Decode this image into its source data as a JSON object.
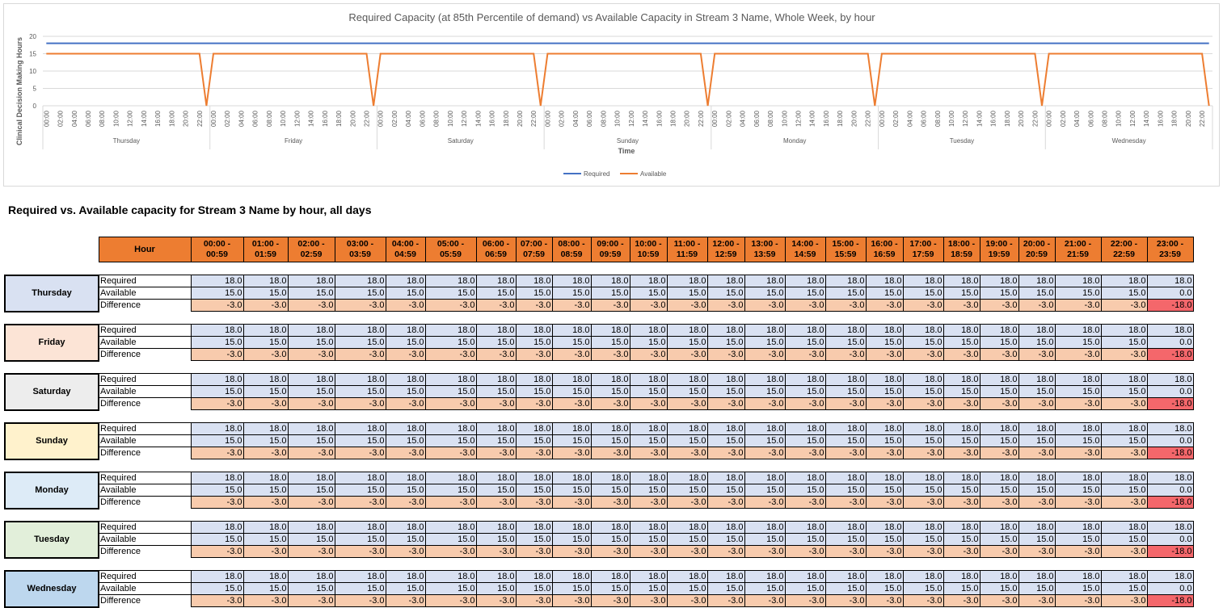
{
  "chart_data": {
    "type": "line",
    "title": "Required Capacity (at 85th Percentile of demand) vs Available Capacity in Stream 3 Name, Whole Week, by hour",
    "xlabel": "Time",
    "ylabel": "Clinical Decision Making Hours",
    "ylim": [
      0,
      20
    ],
    "yticks": [
      0,
      5,
      10,
      15,
      20
    ],
    "days": [
      "Thursday",
      "Friday",
      "Saturday",
      "Sunday",
      "Monday",
      "Tuesday",
      "Wednesday"
    ],
    "hour_ticks": [
      "00:00",
      "02:00",
      "04:00",
      "06:00",
      "08:00",
      "10:00",
      "12:00",
      "14:00",
      "16:00",
      "18:00",
      "20:00",
      "22:00"
    ],
    "legend_position": "bottom",
    "series": [
      {
        "name": "Required",
        "color": "#4472c4",
        "daily_pattern": [
          18,
          18,
          18,
          18,
          18,
          18,
          18,
          18,
          18,
          18,
          18,
          18,
          18,
          18,
          18,
          18,
          18,
          18,
          18,
          18,
          18,
          18,
          18,
          18
        ]
      },
      {
        "name": "Available",
        "color": "#ed7d31",
        "daily_pattern": [
          15,
          15,
          15,
          15,
          15,
          15,
          15,
          15,
          15,
          15,
          15,
          15,
          15,
          15,
          15,
          15,
          15,
          15,
          15,
          15,
          15,
          15,
          15,
          0
        ]
      }
    ]
  },
  "table": {
    "title": "Required vs. Available capacity for Stream 3 Name by hour, all days",
    "hour_header": "Hour",
    "hours": [
      "00:00 - 00:59",
      "01:00 - 01:59",
      "02:00 - 02:59",
      "03:00 - 03:59",
      "04:00 - 04:59",
      "05:00 - 05:59",
      "06:00 - 06:59",
      "07:00 - 07:59",
      "08:00 - 08:59",
      "09:00 - 09:59",
      "10:00 - 10:59",
      "11:00 - 11:59",
      "12:00 - 12:59",
      "13:00 - 13:59",
      "14:00 - 14:59",
      "15:00 - 15:59",
      "16:00 - 16:59",
      "17:00 - 17:59",
      "18:00 - 18:59",
      "19:00 - 19:59",
      "20:00 - 20:59",
      "21:00 - 21:59",
      "22:00 - 22:59",
      "23:00 - 23:59"
    ],
    "row_labels": [
      "Required",
      "Available",
      "Difference"
    ],
    "days": [
      {
        "name": "Thursday",
        "color": "#d9e1f2"
      },
      {
        "name": "Friday",
        "color": "#fce4d6"
      },
      {
        "name": "Saturday",
        "color": "#ededed"
      },
      {
        "name": "Sunday",
        "color": "#fff2cc"
      },
      {
        "name": "Monday",
        "color": "#ddebf7"
      },
      {
        "name": "Tuesday",
        "color": "#e2efda"
      },
      {
        "name": "Wednesday",
        "color": "#bdd7ee"
      }
    ],
    "required": [
      "18.0",
      "18.0",
      "18.0",
      "18.0",
      "18.0",
      "18.0",
      "18.0",
      "18.0",
      "18.0",
      "18.0",
      "18.0",
      "18.0",
      "18.0",
      "18.0",
      "18.0",
      "18.0",
      "18.0",
      "18.0",
      "18.0",
      "18.0",
      "18.0",
      "18.0",
      "18.0",
      "18.0"
    ],
    "available": [
      "15.0",
      "15.0",
      "15.0",
      "15.0",
      "15.0",
      "15.0",
      "15.0",
      "15.0",
      "15.0",
      "15.0",
      "15.0",
      "15.0",
      "15.0",
      "15.0",
      "15.0",
      "15.0",
      "15.0",
      "15.0",
      "15.0",
      "15.0",
      "15.0",
      "15.0",
      "15.0",
      "0.0"
    ],
    "difference": [
      "-3.0",
      "-3.0",
      "-3.0",
      "-3.0",
      "-3.0",
      "-3.0",
      "-3.0",
      "-3.0",
      "-3.0",
      "-3.0",
      "-3.0",
      "-3.0",
      "-3.0",
      "-3.0",
      "-3.0",
      "-3.0",
      "-3.0",
      "-3.0",
      "-3.0",
      "-3.0",
      "-3.0",
      "-3.0",
      "-3.0",
      "-18.0"
    ],
    "colors": {
      "header": "#ed7d31",
      "value_fill": "#d9e1f2",
      "difference_fill": "#f8cbad",
      "large_shortfall_fill": "#f4676b"
    }
  }
}
